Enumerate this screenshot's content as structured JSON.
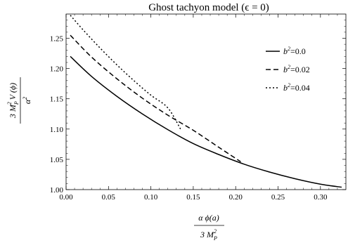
{
  "chart_data": {
    "type": "line",
    "title": "Ghost tachyon model (ϵ = 0)",
    "xlabel": {
      "numerator": "α ϕ(a)",
      "denominator": "3 M",
      "denominator_sub": "P",
      "denominator_sup": "2"
    },
    "ylabel": {
      "numerator": "3 M",
      "numerator_sub": "P",
      "numerator_sup": "2",
      "numerator_rest": " V (ϕ)",
      "denominator": "α",
      "denominator_sup": "2"
    },
    "xlim": [
      0,
      0.33
    ],
    "ylim": [
      1.0,
      1.29
    ],
    "xticks": [
      "0.00",
      "0.05",
      "0.10",
      "0.15",
      "0.20",
      "0.25",
      "0.30"
    ],
    "yticks": [
      "1.00",
      "1.05",
      "1.10",
      "1.15",
      "1.20",
      "1.25"
    ],
    "legend_position": "top-right",
    "series": [
      {
        "name": "b²=0.0",
        "label_base": "b",
        "label_sup": "2",
        "label_val": "=0.0",
        "dash": "solid",
        "x": [
          0.005,
          0.03,
          0.06,
          0.09,
          0.12,
          0.15,
          0.18,
          0.21,
          0.24,
          0.27,
          0.3,
          0.325
        ],
        "y": [
          1.22,
          1.187,
          1.154,
          1.125,
          1.099,
          1.076,
          1.058,
          1.042,
          1.029,
          1.018,
          1.009,
          1.004
        ]
      },
      {
        "name": "b²=0.02",
        "label_base": "b",
        "label_sup": "2",
        "label_val": "=0.02",
        "dash": "dashed",
        "x": [
          0.005,
          0.03,
          0.06,
          0.09,
          0.12,
          0.15,
          0.18,
          0.206
        ],
        "y": [
          1.255,
          1.219,
          1.183,
          1.151,
          1.123,
          1.098,
          1.07,
          1.046
        ]
      },
      {
        "name": "b²=0.04",
        "label_base": "b",
        "label_sup": "2",
        "label_val": "=0.04",
        "dash": "dotted",
        "x": [
          0.005,
          0.02,
          0.04,
          0.06,
          0.08,
          0.1,
          0.12,
          0.135
        ],
        "y": [
          1.288,
          1.264,
          1.234,
          1.206,
          1.18,
          1.156,
          1.135,
          1.1
        ]
      }
    ]
  }
}
